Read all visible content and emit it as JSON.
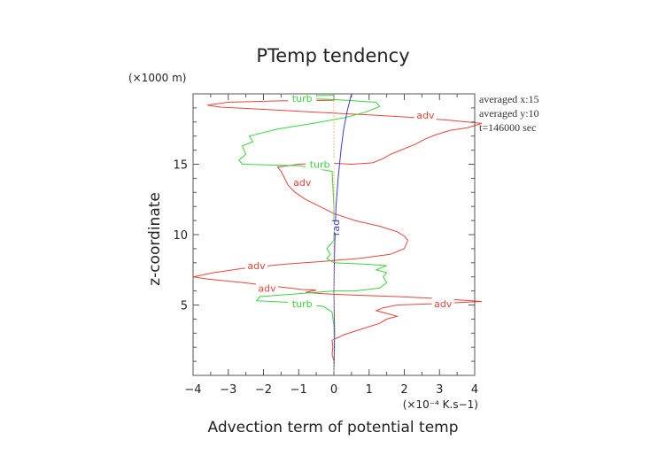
{
  "chart_data": {
    "type": "line",
    "title": "PTemp tendency",
    "xlabel": "Advection term of potential temp",
    "ylabel": "z-coordinate",
    "x_unit": "(×10⁻⁴ K.s−1)",
    "y_unit": "(×1000 m)",
    "xlim": [
      -4,
      4
    ],
    "ylim": [
      0,
      20
    ],
    "xticks": [
      -4,
      -3,
      -2,
      -1,
      0,
      1,
      2,
      3,
      4
    ],
    "yticks": [
      5,
      10,
      15
    ],
    "info": [
      "averaged x:15",
      "averaged y:10",
      "t=146000 sec"
    ],
    "colors": {
      "adv": "#e8453c",
      "turb": "#3ad63a",
      "rad": "#3a3ae0",
      "dotted": "#e8a040",
      "axis": "#555555"
    },
    "series": [
      {
        "name": "adv",
        "color": "#e8453c",
        "labels": [
          {
            "text": "adv",
            "x": 2.6,
            "y": 18.5
          },
          {
            "text": "adv",
            "x": -0.9,
            "y": 13.7
          },
          {
            "text": "adv",
            "x": -2.2,
            "y": 7.8
          },
          {
            "text": "adv",
            "x": -1.9,
            "y": 6.2
          },
          {
            "text": "adv",
            "x": 3.1,
            "y": 5.1
          }
        ],
        "points": [
          [
            0.0,
            0.3
          ],
          [
            0.0,
            1.0
          ],
          [
            -0.05,
            1.5
          ],
          [
            -0.03,
            2.0
          ],
          [
            -0.05,
            2.5
          ],
          [
            0.3,
            2.9
          ],
          [
            0.8,
            3.3
          ],
          [
            1.3,
            3.7
          ],
          [
            1.5,
            4.0
          ],
          [
            1.8,
            4.2
          ],
          [
            1.5,
            4.4
          ],
          [
            1.2,
            4.6
          ],
          [
            1.4,
            4.8
          ],
          [
            1.8,
            5.0
          ],
          [
            3.0,
            5.1
          ],
          [
            4.2,
            5.25
          ],
          [
            3.0,
            5.45
          ],
          [
            1.8,
            5.6
          ],
          [
            0.6,
            5.7
          ],
          [
            -0.3,
            5.8
          ],
          [
            -0.8,
            5.9
          ],
          [
            -0.5,
            6.05
          ],
          [
            -0.9,
            6.1
          ],
          [
            -1.6,
            6.3
          ],
          [
            -2.6,
            6.6
          ],
          [
            -3.6,
            6.85
          ],
          [
            -4.0,
            7.0
          ],
          [
            -3.4,
            7.3
          ],
          [
            -2.6,
            7.6
          ],
          [
            -1.4,
            7.9
          ],
          [
            -0.3,
            8.1
          ],
          [
            0.7,
            8.3
          ],
          [
            1.6,
            8.6
          ],
          [
            2.0,
            9.0
          ],
          [
            2.1,
            9.6
          ],
          [
            2.0,
            9.9
          ],
          [
            1.8,
            10.2
          ],
          [
            1.3,
            10.6
          ],
          [
            0.6,
            11.0
          ],
          [
            0.0,
            11.5
          ],
          [
            -0.4,
            12.0
          ],
          [
            -0.8,
            12.5
          ],
          [
            -1.1,
            13.0
          ],
          [
            -1.3,
            13.5
          ],
          [
            -1.4,
            14.0
          ],
          [
            -1.5,
            14.5
          ],
          [
            -1.6,
            14.8
          ],
          [
            -1.0,
            15.0
          ],
          [
            -0.2,
            15.1
          ],
          [
            0.5,
            15.0
          ],
          [
            1.1,
            15.1
          ],
          [
            1.4,
            15.4
          ],
          [
            1.6,
            15.7
          ],
          [
            1.9,
            16.0
          ],
          [
            2.3,
            16.4
          ],
          [
            2.6,
            16.8
          ],
          [
            2.9,
            17.1
          ],
          [
            3.3,
            17.4
          ],
          [
            3.8,
            17.6
          ],
          [
            4.2,
            17.9
          ],
          [
            3.4,
            18.1
          ],
          [
            2.4,
            18.3
          ],
          [
            1.0,
            18.5
          ],
          [
            -0.5,
            18.7
          ],
          [
            -2.0,
            18.9
          ],
          [
            -3.2,
            19.05
          ],
          [
            -3.6,
            19.2
          ],
          [
            -3.0,
            19.4
          ],
          [
            -1.5,
            19.5
          ],
          [
            0.0,
            19.55
          ]
        ]
      },
      {
        "name": "turb",
        "color": "#3ad63a",
        "labels": [
          {
            "text": "turb",
            "x": -0.9,
            "y": 19.7
          },
          {
            "text": "turb",
            "x": -0.4,
            "y": 15.0
          },
          {
            "text": "turb",
            "x": -0.9,
            "y": 5.1
          }
        ],
        "points": [
          [
            0.0,
            0.3
          ],
          [
            0.02,
            2.0
          ],
          [
            0.0,
            3.5
          ],
          [
            -0.05,
            4.5
          ],
          [
            -0.3,
            4.9
          ],
          [
            -1.4,
            5.2
          ],
          [
            -2.2,
            5.3
          ],
          [
            -2.1,
            5.6
          ],
          [
            -1.0,
            5.8
          ],
          [
            0.0,
            6.0
          ],
          [
            0.6,
            6.0
          ],
          [
            1.3,
            6.2
          ],
          [
            1.5,
            6.6
          ],
          [
            1.4,
            7.0
          ],
          [
            1.5,
            7.3
          ],
          [
            1.2,
            7.5
          ],
          [
            1.5,
            7.8
          ],
          [
            0.9,
            7.9
          ],
          [
            0.0,
            8.0
          ],
          [
            -0.2,
            8.3
          ],
          [
            -0.1,
            8.6
          ],
          [
            -0.2,
            9.0
          ],
          [
            0.0,
            9.6
          ],
          [
            0.0,
            12.0
          ],
          [
            -0.05,
            14.5
          ],
          [
            -1.0,
            14.9
          ],
          [
            -2.6,
            15.0
          ],
          [
            -2.7,
            15.3
          ],
          [
            -2.5,
            15.7
          ],
          [
            -2.6,
            16.3
          ],
          [
            -2.3,
            16.6
          ],
          [
            -2.4,
            17.0
          ],
          [
            -1.6,
            17.5
          ],
          [
            -0.6,
            17.9
          ],
          [
            0.3,
            18.3
          ],
          [
            0.9,
            18.7
          ],
          [
            1.3,
            19.1
          ],
          [
            1.2,
            19.4
          ],
          [
            0.0,
            19.6
          ],
          [
            -1.3,
            19.7
          ],
          [
            -1.1,
            19.85
          ],
          [
            0.0,
            19.9
          ]
        ]
      },
      {
        "name": "rad",
        "color": "#3a3ae0",
        "labels": [
          {
            "text": "rad",
            "x": 0.05,
            "y": 10.5
          }
        ],
        "points": [
          [
            0.0,
            0.3
          ],
          [
            0.02,
            3.0
          ],
          [
            0.0,
            6.0
          ],
          [
            0.02,
            9.0
          ],
          [
            0.06,
            12.0
          ],
          [
            0.12,
            14.0
          ],
          [
            0.2,
            16.0
          ],
          [
            0.28,
            17.5
          ],
          [
            0.38,
            18.8
          ],
          [
            0.5,
            20.0
          ]
        ]
      },
      {
        "name": "dotted",
        "color": "#e8a040",
        "labels": [],
        "points": [
          [
            0.0,
            0.3
          ],
          [
            0.0,
            20.0
          ]
        ]
      }
    ]
  }
}
